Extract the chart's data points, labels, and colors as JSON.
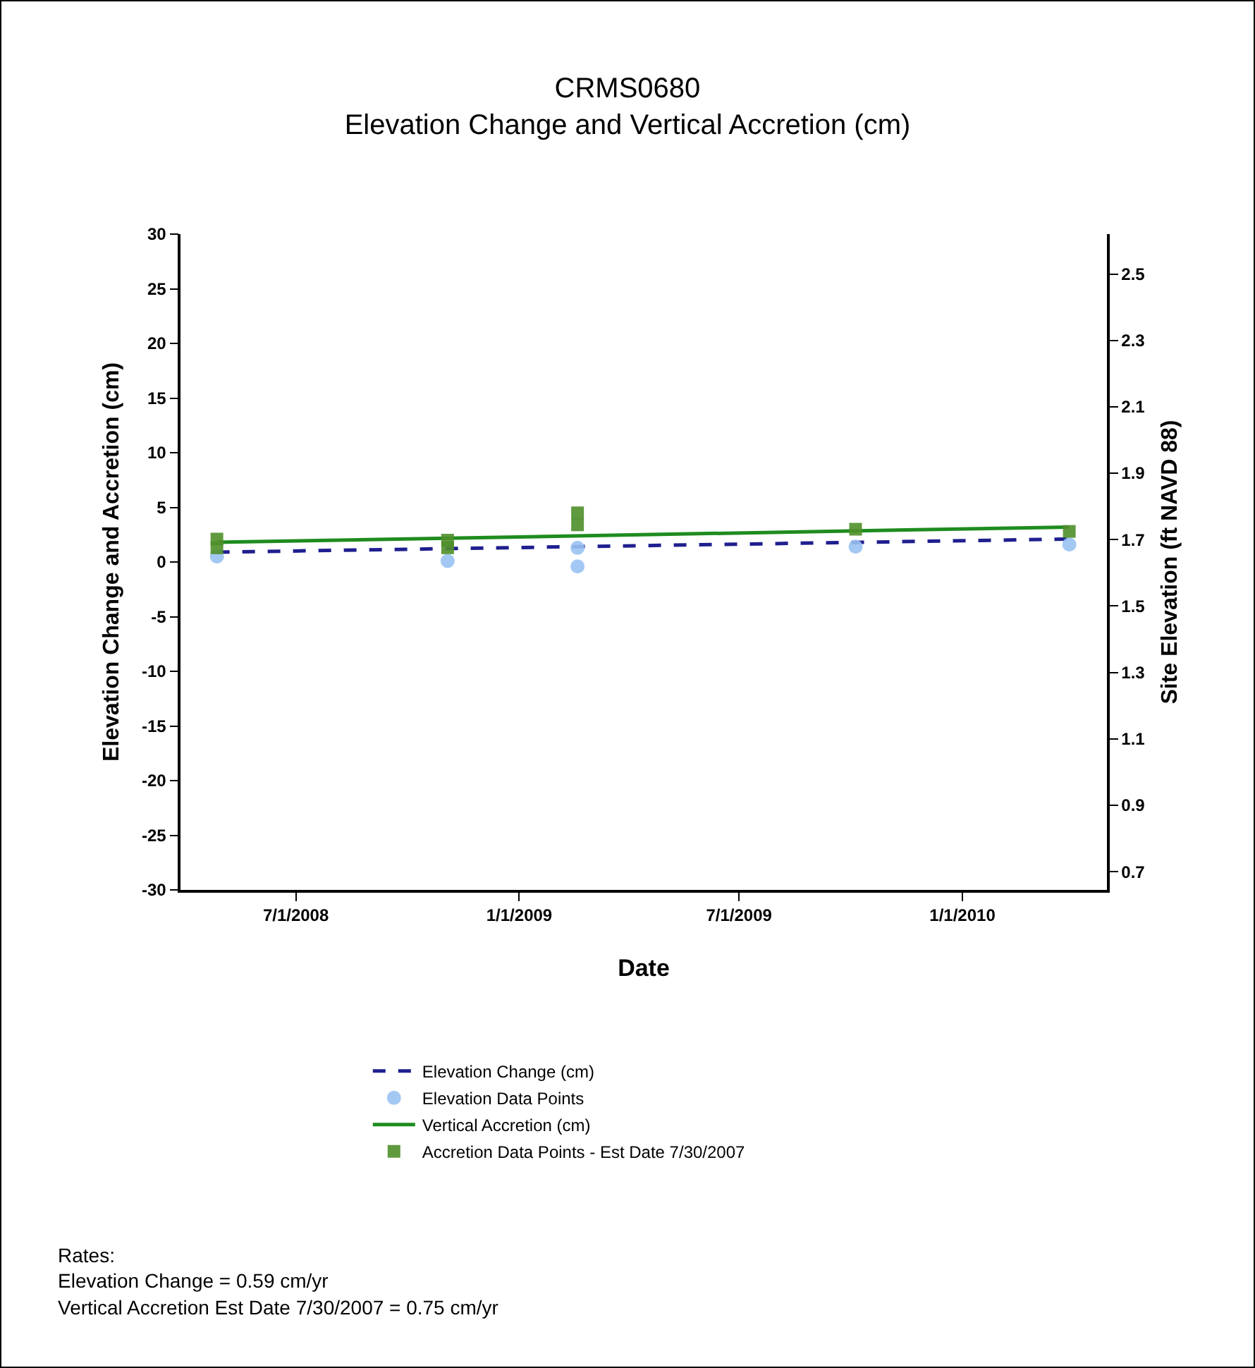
{
  "chart_data": {
    "type": "line",
    "title": "CRMS0680\nElevation Change and Vertical Accretion (cm)",
    "xlabel": "Date",
    "ylabel": "Elevation Change and Accretion (cm)",
    "y2label": "Site Elevation (ft NAVD 88)",
    "xlim": [
      "2008-03-28",
      "2010-04-30"
    ],
    "xticks": [
      {
        "value": "2008-07-01",
        "label": "7/1/2008"
      },
      {
        "value": "2009-01-01",
        "label": "1/1/2009"
      },
      {
        "value": "2009-07-01",
        "label": "7/1/2009"
      },
      {
        "value": "2010-01-01",
        "label": "1/1/2010"
      }
    ],
    "ylim": [
      -30,
      30
    ],
    "yticks": [
      -30,
      -25,
      -20,
      -15,
      -10,
      -5,
      0,
      5,
      10,
      15,
      20,
      25,
      30
    ],
    "y2lim": [
      0.645,
      2.62
    ],
    "y2ticks": [
      0.7,
      0.9,
      1.1,
      1.3,
      1.5,
      1.7,
      1.9,
      2.1,
      2.3,
      2.5
    ],
    "grid": false,
    "legend": "bottom",
    "series": [
      {
        "name": "Elevation Change (cm)",
        "type": "line",
        "line_style": "dashed",
        "marker": "none",
        "color": "#1f1f8f",
        "x": [
          "2008-04-27",
          "2010-03-30"
        ],
        "values": [
          0.9,
          2.1
        ]
      },
      {
        "name": "Elevation Data Points",
        "type": "scatter",
        "marker": "circle",
        "color": "#99c2f2",
        "x": [
          "2008-04-27",
          "2008-11-03",
          "2009-02-18",
          "2009-02-18",
          "2009-10-05",
          "2010-03-30"
        ],
        "values": [
          0.5,
          0.1,
          1.3,
          -0.4,
          1.4,
          1.6
        ]
      },
      {
        "name": "Vertical Accretion (cm)",
        "type": "line",
        "line_style": "solid",
        "marker": "none",
        "color": "#1e8c1e",
        "x": [
          "2008-04-27",
          "2010-03-30"
        ],
        "values": [
          1.8,
          3.2
        ]
      },
      {
        "name": "Accretion Data Points - Est Date 7/30/2007",
        "type": "scatter",
        "marker": "square",
        "color": "#4f8f2a",
        "x": [
          "2008-04-27",
          "2008-04-27",
          "2008-11-03",
          "2008-11-03",
          "2009-02-18",
          "2009-02-18",
          "2009-10-05",
          "2010-03-30"
        ],
        "values": [
          2.1,
          1.3,
          2.0,
          1.3,
          4.5,
          3.4,
          3.0,
          2.8
        ]
      }
    ],
    "annotations": [
      "Rates:",
      "Elevation Change = 0.59 cm/yr",
      "Vertical Accretion Est Date 7/30/2007 = 0.75 cm/yr"
    ]
  }
}
